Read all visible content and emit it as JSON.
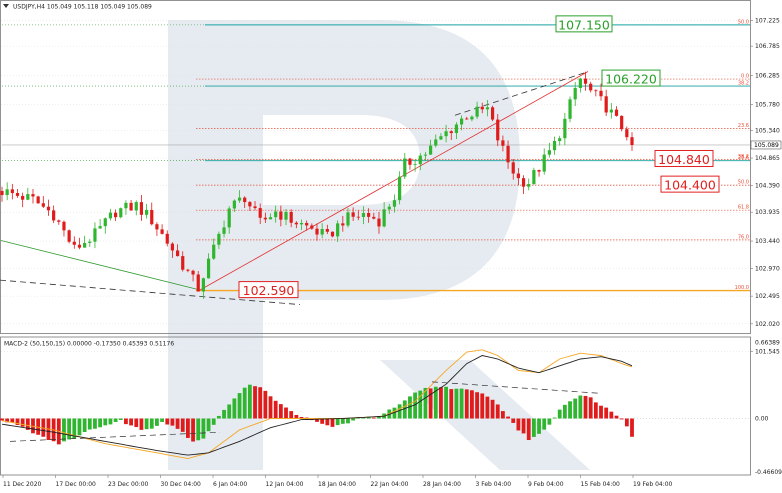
{
  "header": {
    "symbol_line": "USDJPY,H4  105.049 105.118 105.049 105.089",
    "macd_line": "MACD-2 (50,150,15) 0.00000 -0.17350 0.45393 0.51176"
  },
  "colors": {
    "bull": "#2fb52f",
    "bear": "#e01b1b",
    "fib_red": "#e8503a",
    "fib_teal": "#1aa3a3",
    "fib_orange": "#f5a623",
    "label_green": "#2aa02a",
    "label_red": "#e02020",
    "watermark": "#dfe6ee"
  },
  "chart_data": [
    {
      "type": "candlestick",
      "title": "USDJPY,H4",
      "ylim": [
        101.3,
        107.5
      ],
      "y_ticks": [
        "107.225",
        "106.785",
        "106.285",
        "105.780",
        "105.340",
        "104.865",
        "104.390",
        "103.935",
        "103.440",
        "102.970",
        "102.495",
        "102.020",
        "101.545"
      ],
      "last_price": "105.089",
      "price_path": [
        [
          0,
          104.3
        ],
        [
          6,
          104.15
        ],
        [
          10,
          103.9
        ],
        [
          14,
          103.3
        ],
        [
          18,
          103.55
        ],
        [
          22,
          103.95
        ],
        [
          26,
          104.05
        ],
        [
          29,
          103.8
        ],
        [
          33,
          103.3
        ],
        [
          36,
          102.9
        ],
        [
          38,
          102.63
        ],
        [
          41,
          103.3
        ],
        [
          44,
          104.0
        ],
        [
          47,
          104.2
        ],
        [
          50,
          103.75
        ],
        [
          53,
          103.95
        ],
        [
          56,
          103.8
        ],
        [
          60,
          103.65
        ],
        [
          63,
          103.5
        ],
        [
          66,
          103.8
        ],
        [
          70,
          103.9
        ],
        [
          73,
          103.8
        ],
        [
          76,
          104.2
        ],
        [
          78,
          104.75
        ],
        [
          82,
          104.95
        ],
        [
          86,
          105.3
        ],
        [
          90,
          105.6
        ],
        [
          94,
          105.7
        ],
        [
          96,
          105.2
        ],
        [
          98,
          104.8
        ],
        [
          100,
          104.5
        ],
        [
          102,
          104.45
        ],
        [
          104,
          104.7
        ],
        [
          107,
          105.1
        ],
        [
          109,
          105.5
        ],
        [
          111,
          106.05
        ],
        [
          112,
          106.22
        ],
        [
          114,
          106.0
        ],
        [
          117,
          105.75
        ],
        [
          119,
          105.5
        ],
        [
          121,
          105.3
        ],
        [
          122,
          105.089
        ]
      ],
      "fib_levels_current": [
        {
          "label": "0.0",
          "price": 106.22
        },
        {
          "label": "23.6",
          "price": 105.37
        },
        {
          "label": "38.2",
          "price": 104.84
        },
        {
          "label": "50.0",
          "price": 104.4
        },
        {
          "label": "61.8",
          "price": 103.97
        },
        {
          "label": "76.0",
          "price": 103.46
        },
        {
          "label": "100.0",
          "price": 102.59
        }
      ],
      "fib_levels_extension": [
        {
          "label": "50.0",
          "price": 107.15
        },
        {
          "label": "38.2",
          "price": 106.1
        },
        {
          "label": "23.6",
          "price": 104.82
        }
      ],
      "annotations": [
        {
          "text": "107.150",
          "price": 107.15,
          "color": "green"
        },
        {
          "text": "106.220",
          "price": 106.22,
          "color": "green"
        },
        {
          "text": "104.840",
          "price": 104.84,
          "color": "red"
        },
        {
          "text": "104.400",
          "price": 104.4,
          "color": "red"
        },
        {
          "text": "102.590",
          "price": 102.59,
          "color": "red"
        }
      ]
    },
    {
      "type": "bar",
      "title": "MACD-2 (50,150,15)",
      "ylim": [
        -0.46609,
        0.66389
      ],
      "y_ticks": [
        "0.66389",
        "0.00",
        "-0.46609"
      ],
      "histogram_path": [
        [
          0,
          -0.02
        ],
        [
          3,
          -0.05
        ],
        [
          6,
          -0.12
        ],
        [
          9,
          -0.18
        ],
        [
          11,
          -0.22
        ],
        [
          13,
          -0.18
        ],
        [
          15,
          -0.15
        ],
        [
          18,
          -0.08
        ],
        [
          21,
          -0.05
        ],
        [
          23,
          -0.02
        ],
        [
          25,
          -0.06
        ],
        [
          27,
          -0.1
        ],
        [
          29,
          -0.08
        ],
        [
          31,
          -0.03
        ],
        [
          33,
          -0.06
        ],
        [
          35,
          -0.12
        ],
        [
          37,
          -0.2
        ],
        [
          39,
          -0.17
        ],
        [
          41,
          -0.05
        ],
        [
          43,
          0.08
        ],
        [
          46,
          0.22
        ],
        [
          48,
          0.3
        ],
        [
          50,
          0.28
        ],
        [
          52,
          0.2
        ],
        [
          54,
          0.12
        ],
        [
          56,
          0.06
        ],
        [
          58,
          0.02
        ],
        [
          60,
          -0.02
        ],
        [
          62,
          -0.05
        ],
        [
          64,
          -0.07
        ],
        [
          66,
          -0.05
        ],
        [
          68,
          -0.02
        ],
        [
          70,
          0.0
        ],
        [
          73,
          0.02
        ],
        [
          75,
          0.07
        ],
        [
          78,
          0.15
        ],
        [
          80,
          0.22
        ],
        [
          82,
          0.26
        ],
        [
          85,
          0.28
        ],
        [
          88,
          0.26
        ],
        [
          91,
          0.24
        ],
        [
          94,
          0.2
        ],
        [
          96,
          0.12
        ],
        [
          98,
          0.02
        ],
        [
          100,
          -0.1
        ],
        [
          102,
          -0.18
        ],
        [
          104,
          -0.14
        ],
        [
          106,
          -0.05
        ],
        [
          108,
          0.08
        ],
        [
          110,
          0.16
        ],
        [
          112,
          0.2
        ],
        [
          114,
          0.18
        ],
        [
          116,
          0.12
        ],
        [
          118,
          0.06
        ],
        [
          120,
          0.0
        ],
        [
          121,
          -0.06
        ],
        [
          122,
          -0.15
        ]
      ],
      "macd_path": [
        [
          0,
          -0.05
        ],
        [
          10,
          -0.12
        ],
        [
          20,
          -0.2
        ],
        [
          30,
          -0.28
        ],
        [
          36,
          -0.32
        ],
        [
          40,
          -0.3
        ],
        [
          46,
          -0.2
        ],
        [
          52,
          -0.08
        ],
        [
          58,
          -0.01
        ],
        [
          66,
          0.0
        ],
        [
          74,
          0.02
        ],
        [
          80,
          0.12
        ],
        [
          86,
          0.3
        ],
        [
          90,
          0.48
        ],
        [
          93,
          0.55
        ],
        [
          96,
          0.52
        ],
        [
          100,
          0.44
        ],
        [
          104,
          0.4
        ],
        [
          108,
          0.46
        ],
        [
          112,
          0.52
        ],
        [
          116,
          0.54
        ],
        [
          120,
          0.5
        ],
        [
          122,
          0.46
        ]
      ],
      "signal_path": [
        [
          0,
          -0.02
        ],
        [
          10,
          -0.1
        ],
        [
          20,
          -0.22
        ],
        [
          30,
          -0.3
        ],
        [
          36,
          -0.35
        ],
        [
          40,
          -0.3
        ],
        [
          46,
          -0.1
        ],
        [
          52,
          0.0
        ],
        [
          58,
          0.0
        ],
        [
          66,
          0.0
        ],
        [
          74,
          0.02
        ],
        [
          80,
          0.15
        ],
        [
          86,
          0.42
        ],
        [
          90,
          0.58
        ],
        [
          93,
          0.6
        ],
        [
          96,
          0.55
        ],
        [
          100,
          0.42
        ],
        [
          104,
          0.4
        ],
        [
          108,
          0.52
        ],
        [
          112,
          0.57
        ],
        [
          116,
          0.55
        ],
        [
          120,
          0.48
        ],
        [
          122,
          0.45
        ]
      ]
    }
  ],
  "x_axis_labels": [
    "11 Dec 2020",
    "17 Dec 00:00",
    "23 Dec 00:00",
    "30 Dec 04:00",
    "6 Jan 04:00",
    "12 Jan 04:00",
    "18 Jan 04:00",
    "22 Jan 04:00",
    "28 Jan 04:00",
    "3 Feb 04:00",
    "9 Feb 04:00",
    "15 Feb 04:00",
    "19 Feb 04:00"
  ]
}
